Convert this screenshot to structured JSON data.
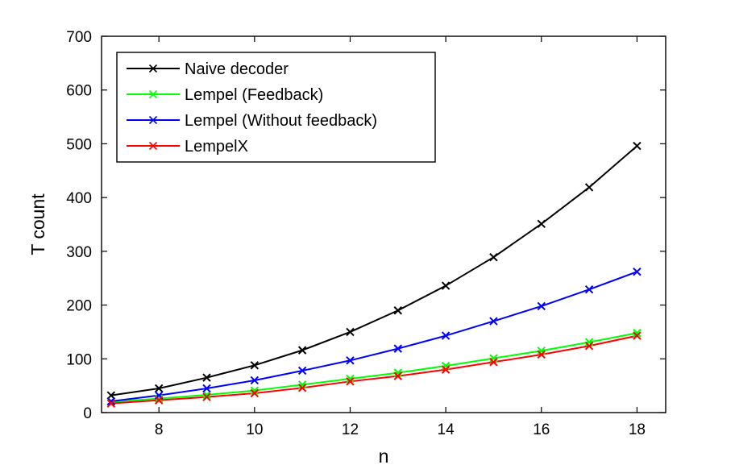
{
  "chart_data": {
    "type": "line",
    "title": "",
    "xlabel": "n",
    "ylabel": "T count",
    "xlim": [
      6.8,
      18.6
    ],
    "ylim": [
      0,
      700
    ],
    "xticks": [
      8,
      10,
      12,
      14,
      16,
      18
    ],
    "yticks": [
      0,
      100,
      200,
      300,
      400,
      500,
      600,
      700
    ],
    "grid": false,
    "legend_position": "top-left",
    "marker": "x",
    "x": [
      7,
      8,
      9,
      10,
      11,
      12,
      13,
      14,
      15,
      16,
      17,
      18
    ],
    "series": [
      {
        "name": "Naive decoder",
        "color": "#000000",
        "values": [
          32,
          45,
          65,
          88,
          116,
          150,
          190,
          236,
          289,
          351,
          419,
          496
        ]
      },
      {
        "name": "Lempel (Feedback)",
        "color": "#00ff00",
        "values": [
          20,
          26,
          33,
          41,
          52,
          63,
          74,
          87,
          101,
          115,
          131,
          148
        ]
      },
      {
        "name": "Lempel (Without feedback)",
        "color": "#0000ff",
        "values": [
          21,
          32,
          45,
          60,
          78,
          97,
          119,
          143,
          170,
          198,
          229,
          262
        ]
      },
      {
        "name": "LempelX",
        "color": "#ff0000",
        "values": [
          17,
          23,
          29,
          36,
          46,
          58,
          68,
          80,
          94,
          108,
          124,
          143
        ]
      }
    ]
  }
}
